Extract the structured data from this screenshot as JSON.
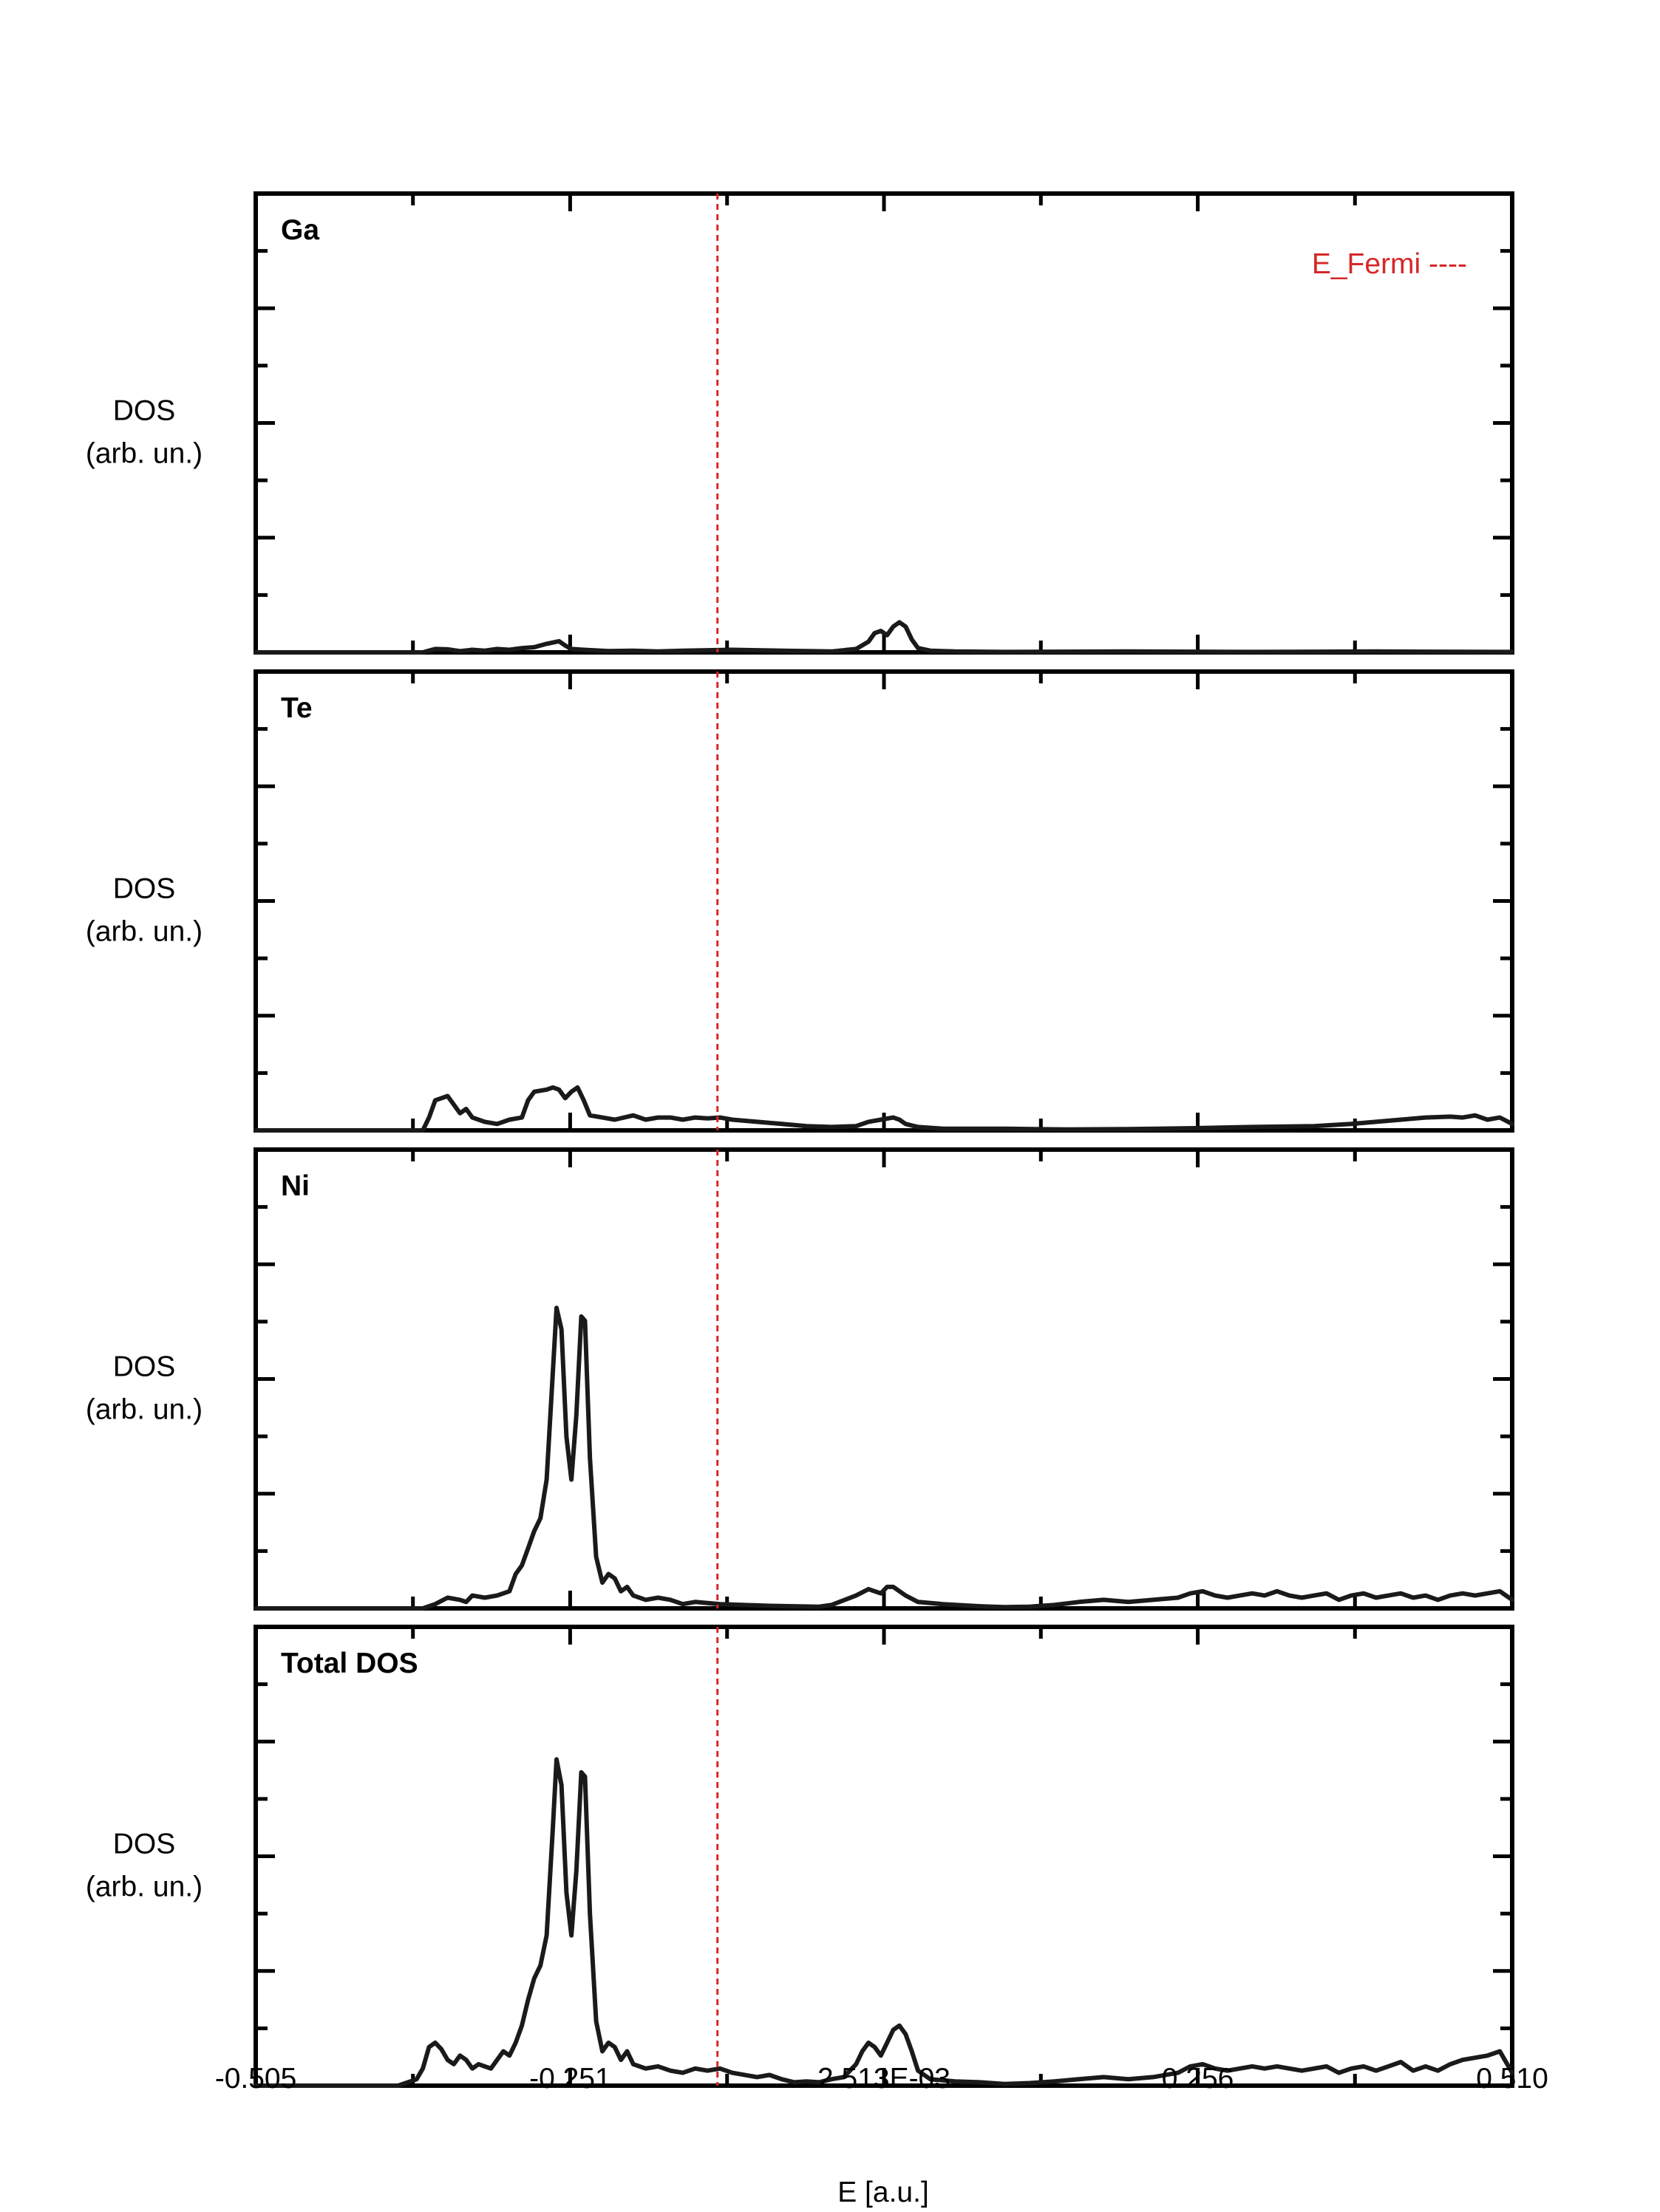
{
  "chart_data": {
    "type": "line",
    "xlabel": "E [a.u.]",
    "x_tick_labels": [
      "-0.505",
      "-0.251",
      "2.513E-03",
      "0.256",
      "0.510"
    ],
    "x_ticks": [
      -0.505,
      -0.251,
      0.002513,
      0.256,
      0.51
    ],
    "xlim": [
      -0.505,
      0.51
    ],
    "ylim": [
      0,
      1
    ],
    "grid": false,
    "colors": {
      "line": "#1a1a1a",
      "fermi": "#d62728",
      "axes": "#000000"
    },
    "fermi": {
      "x": -0.132,
      "label": "E_Fermi ----",
      "style": "dashed",
      "legend_position": "top-right"
    },
    "ylabel_lines": [
      "DOS",
      "(arb. un.)"
    ],
    "panels": [
      {
        "label": "Ga",
        "points": [
          [
            -0.505,
            0
          ],
          [
            -0.37,
            0
          ],
          [
            -0.365,
            0.004
          ],
          [
            -0.36,
            0.008
          ],
          [
            -0.35,
            0.007
          ],
          [
            -0.34,
            0.003
          ],
          [
            -0.33,
            0.006
          ],
          [
            -0.32,
            0.004
          ],
          [
            -0.31,
            0.008
          ],
          [
            -0.3,
            0.006
          ],
          [
            -0.29,
            0.01
          ],
          [
            -0.28,
            0.012
          ],
          [
            -0.27,
            0.02
          ],
          [
            -0.26,
            0.026
          ],
          [
            -0.255,
            0.016
          ],
          [
            -0.25,
            0.008
          ],
          [
            -0.24,
            0.006
          ],
          [
            -0.22,
            0.003
          ],
          [
            -0.2,
            0.004
          ],
          [
            -0.18,
            0.002
          ],
          [
            -0.16,
            0.004
          ],
          [
            -0.14,
            0.005
          ],
          [
            -0.12,
            0.006
          ],
          [
            -0.1,
            0.005
          ],
          [
            -0.08,
            0.004
          ],
          [
            -0.06,
            0.003
          ],
          [
            -0.04,
            0.002
          ],
          [
            -0.02,
            0.008
          ],
          [
            -0.01,
            0.025
          ],
          [
            -0.005,
            0.045
          ],
          [
            0.0,
            0.05
          ],
          [
            0.005,
            0.04
          ],
          [
            0.01,
            0.06
          ],
          [
            0.015,
            0.07
          ],
          [
            0.02,
            0.06
          ],
          [
            0.025,
            0.03
          ],
          [
            0.03,
            0.01
          ],
          [
            0.04,
            0.004
          ],
          [
            0.06,
            0.002
          ],
          [
            0.1,
            0.001
          ],
          [
            0.2,
            0.002
          ],
          [
            0.3,
            0.001
          ],
          [
            0.4,
            0.002
          ],
          [
            0.51,
            0.001
          ]
        ]
      },
      {
        "label": "Te",
        "points": [
          [
            -0.505,
            0
          ],
          [
            -0.37,
            0
          ],
          [
            -0.365,
            0.03
          ],
          [
            -0.36,
            0.07
          ],
          [
            -0.355,
            0.075
          ],
          [
            -0.35,
            0.08
          ],
          [
            -0.345,
            0.06
          ],
          [
            -0.34,
            0.04
          ],
          [
            -0.335,
            0.05
          ],
          [
            -0.33,
            0.03
          ],
          [
            -0.32,
            0.02
          ],
          [
            -0.31,
            0.015
          ],
          [
            -0.3,
            0.025
          ],
          [
            -0.29,
            0.03
          ],
          [
            -0.285,
            0.07
          ],
          [
            -0.28,
            0.09
          ],
          [
            -0.27,
            0.095
          ],
          [
            -0.265,
            0.1
          ],
          [
            -0.26,
            0.095
          ],
          [
            -0.255,
            0.075
          ],
          [
            -0.25,
            0.09
          ],
          [
            -0.245,
            0.1
          ],
          [
            -0.24,
            0.07
          ],
          [
            -0.235,
            0.035
          ],
          [
            -0.225,
            0.03
          ],
          [
            -0.215,
            0.025
          ],
          [
            -0.2,
            0.035
          ],
          [
            -0.19,
            0.025
          ],
          [
            -0.18,
            0.03
          ],
          [
            -0.17,
            0.03
          ],
          [
            -0.16,
            0.025
          ],
          [
            -0.15,
            0.03
          ],
          [
            -0.14,
            0.028
          ],
          [
            -0.13,
            0.03
          ],
          [
            -0.12,
            0.025
          ],
          [
            -0.1,
            0.02
          ],
          [
            -0.08,
            0.015
          ],
          [
            -0.06,
            0.01
          ],
          [
            -0.04,
            0.008
          ],
          [
            -0.02,
            0.01
          ],
          [
            -0.01,
            0.02
          ],
          [
            0.0,
            0.025
          ],
          [
            0.01,
            0.03
          ],
          [
            0.015,
            0.025
          ],
          [
            0.02,
            0.015
          ],
          [
            0.03,
            0.008
          ],
          [
            0.05,
            0.004
          ],
          [
            0.1,
            0.004
          ],
          [
            0.15,
            0.002
          ],
          [
            0.2,
            0.003
          ],
          [
            0.25,
            0.005
          ],
          [
            0.3,
            0.008
          ],
          [
            0.35,
            0.01
          ],
          [
            0.38,
            0.015
          ],
          [
            0.4,
            0.02
          ],
          [
            0.42,
            0.025
          ],
          [
            0.44,
            0.03
          ],
          [
            0.46,
            0.032
          ],
          [
            0.47,
            0.03
          ],
          [
            0.48,
            0.035
          ],
          [
            0.49,
            0.025
          ],
          [
            0.5,
            0.03
          ],
          [
            0.51,
            0.015
          ]
        ]
      },
      {
        "label": "Ni",
        "points": [
          [
            -0.505,
            0
          ],
          [
            -0.37,
            0
          ],
          [
            -0.36,
            0.01
          ],
          [
            -0.35,
            0.025
          ],
          [
            -0.34,
            0.02
          ],
          [
            -0.335,
            0.015
          ],
          [
            -0.33,
            0.03
          ],
          [
            -0.32,
            0.025
          ],
          [
            -0.31,
            0.03
          ],
          [
            -0.3,
            0.04
          ],
          [
            -0.295,
            0.08
          ],
          [
            -0.29,
            0.1
          ],
          [
            -0.285,
            0.14
          ],
          [
            -0.28,
            0.18
          ],
          [
            -0.275,
            0.21
          ],
          [
            -0.27,
            0.3
          ],
          [
            -0.265,
            0.55
          ],
          [
            -0.262,
            0.7
          ],
          [
            -0.258,
            0.65
          ],
          [
            -0.254,
            0.4
          ],
          [
            -0.25,
            0.3
          ],
          [
            -0.246,
            0.45
          ],
          [
            -0.242,
            0.68
          ],
          [
            -0.239,
            0.67
          ],
          [
            -0.235,
            0.35
          ],
          [
            -0.23,
            0.12
          ],
          [
            -0.225,
            0.06
          ],
          [
            -0.22,
            0.08
          ],
          [
            -0.215,
            0.07
          ],
          [
            -0.21,
            0.04
          ],
          [
            -0.205,
            0.05
          ],
          [
            -0.2,
            0.03
          ],
          [
            -0.19,
            0.02
          ],
          [
            -0.18,
            0.025
          ],
          [
            -0.17,
            0.02
          ],
          [
            -0.16,
            0.01
          ],
          [
            -0.15,
            0.015
          ],
          [
            -0.13,
            0.01
          ],
          [
            -0.11,
            0.008
          ],
          [
            -0.09,
            0.006
          ],
          [
            -0.07,
            0.005
          ],
          [
            -0.05,
            0.004
          ],
          [
            -0.04,
            0.008
          ],
          [
            -0.02,
            0.03
          ],
          [
            -0.01,
            0.045
          ],
          [
            0.0,
            0.035
          ],
          [
            0.005,
            0.05
          ],
          [
            0.01,
            0.05
          ],
          [
            0.02,
            0.03
          ],
          [
            0.03,
            0.015
          ],
          [
            0.05,
            0.01
          ],
          [
            0.08,
            0.005
          ],
          [
            0.1,
            0.003
          ],
          [
            0.12,
            0.004
          ],
          [
            0.14,
            0.008
          ],
          [
            0.16,
            0.015
          ],
          [
            0.18,
            0.02
          ],
          [
            0.2,
            0.015
          ],
          [
            0.22,
            0.02
          ],
          [
            0.24,
            0.025
          ],
          [
            0.25,
            0.035
          ],
          [
            0.26,
            0.04
          ],
          [
            0.27,
            0.03
          ],
          [
            0.28,
            0.025
          ],
          [
            0.29,
            0.03
          ],
          [
            0.3,
            0.035
          ],
          [
            0.31,
            0.03
          ],
          [
            0.32,
            0.04
          ],
          [
            0.33,
            0.03
          ],
          [
            0.34,
            0.025
          ],
          [
            0.35,
            0.03
          ],
          [
            0.36,
            0.035
          ],
          [
            0.37,
            0.02
          ],
          [
            0.38,
            0.03
          ],
          [
            0.39,
            0.035
          ],
          [
            0.4,
            0.025
          ],
          [
            0.41,
            0.03
          ],
          [
            0.42,
            0.035
          ],
          [
            0.43,
            0.025
          ],
          [
            0.44,
            0.03
          ],
          [
            0.45,
            0.02
          ],
          [
            0.46,
            0.03
          ],
          [
            0.47,
            0.035
          ],
          [
            0.48,
            0.03
          ],
          [
            0.49,
            0.035
          ],
          [
            0.5,
            0.04
          ],
          [
            0.51,
            0.02
          ]
        ]
      },
      {
        "label": "Total DOS",
        "points": [
          [
            -0.505,
            0
          ],
          [
            -0.39,
            0
          ],
          [
            -0.38,
            0.01
          ],
          [
            -0.375,
            0.015
          ],
          [
            -0.37,
            0.04
          ],
          [
            -0.365,
            0.09
          ],
          [
            -0.36,
            0.1
          ],
          [
            -0.355,
            0.085
          ],
          [
            -0.35,
            0.06
          ],
          [
            -0.345,
            0.05
          ],
          [
            -0.34,
            0.07
          ],
          [
            -0.335,
            0.06
          ],
          [
            -0.33,
            0.04
          ],
          [
            -0.325,
            0.05
          ],
          [
            -0.32,
            0.045
          ],
          [
            -0.315,
            0.04
          ],
          [
            -0.31,
            0.06
          ],
          [
            -0.305,
            0.08
          ],
          [
            -0.3,
            0.07
          ],
          [
            -0.295,
            0.1
          ],
          [
            -0.29,
            0.14
          ],
          [
            -0.285,
            0.2
          ],
          [
            -0.28,
            0.25
          ],
          [
            -0.275,
            0.28
          ],
          [
            -0.27,
            0.35
          ],
          [
            -0.265,
            0.6
          ],
          [
            -0.262,
            0.76
          ],
          [
            -0.258,
            0.7
          ],
          [
            -0.254,
            0.45
          ],
          [
            -0.25,
            0.35
          ],
          [
            -0.246,
            0.5
          ],
          [
            -0.242,
            0.73
          ],
          [
            -0.239,
            0.72
          ],
          [
            -0.235,
            0.4
          ],
          [
            -0.23,
            0.15
          ],
          [
            -0.225,
            0.08
          ],
          [
            -0.22,
            0.1
          ],
          [
            -0.215,
            0.09
          ],
          [
            -0.21,
            0.06
          ],
          [
            -0.205,
            0.08
          ],
          [
            -0.2,
            0.05
          ],
          [
            -0.19,
            0.04
          ],
          [
            -0.18,
            0.045
          ],
          [
            -0.17,
            0.035
          ],
          [
            -0.16,
            0.03
          ],
          [
            -0.15,
            0.04
          ],
          [
            -0.14,
            0.035
          ],
          [
            -0.13,
            0.04
          ],
          [
            -0.12,
            0.03
          ],
          [
            -0.1,
            0.02
          ],
          [
            -0.09,
            0.025
          ],
          [
            -0.08,
            0.015
          ],
          [
            -0.07,
            0.008
          ],
          [
            -0.06,
            0.01
          ],
          [
            -0.05,
            0.008
          ],
          [
            -0.04,
            0.015
          ],
          [
            -0.03,
            0.02
          ],
          [
            -0.02,
            0.05
          ],
          [
            -0.015,
            0.08
          ],
          [
            -0.01,
            0.1
          ],
          [
            -0.005,
            0.09
          ],
          [
            0.0,
            0.07
          ],
          [
            0.005,
            0.1
          ],
          [
            0.01,
            0.13
          ],
          [
            0.015,
            0.14
          ],
          [
            0.02,
            0.12
          ],
          [
            0.025,
            0.08
          ],
          [
            0.03,
            0.035
          ],
          [
            0.04,
            0.015
          ],
          [
            0.06,
            0.01
          ],
          [
            0.08,
            0.008
          ],
          [
            0.1,
            0.004
          ],
          [
            0.12,
            0.006
          ],
          [
            0.14,
            0.01
          ],
          [
            0.16,
            0.015
          ],
          [
            0.18,
            0.02
          ],
          [
            0.2,
            0.015
          ],
          [
            0.22,
            0.02
          ],
          [
            0.24,
            0.03
          ],
          [
            0.25,
            0.045
          ],
          [
            0.26,
            0.05
          ],
          [
            0.27,
            0.04
          ],
          [
            0.28,
            0.035
          ],
          [
            0.29,
            0.04
          ],
          [
            0.3,
            0.045
          ],
          [
            0.31,
            0.04
          ],
          [
            0.32,
            0.045
          ],
          [
            0.33,
            0.04
          ],
          [
            0.34,
            0.035
          ],
          [
            0.35,
            0.04
          ],
          [
            0.36,
            0.045
          ],
          [
            0.37,
            0.03
          ],
          [
            0.38,
            0.04
          ],
          [
            0.39,
            0.045
          ],
          [
            0.4,
            0.035
          ],
          [
            0.41,
            0.045
          ],
          [
            0.42,
            0.055
          ],
          [
            0.43,
            0.035
          ],
          [
            0.44,
            0.045
          ],
          [
            0.45,
            0.035
          ],
          [
            0.46,
            0.05
          ],
          [
            0.47,
            0.06
          ],
          [
            0.48,
            0.065
          ],
          [
            0.49,
            0.07
          ],
          [
            0.5,
            0.08
          ],
          [
            0.51,
            0.03
          ]
        ]
      }
    ]
  }
}
